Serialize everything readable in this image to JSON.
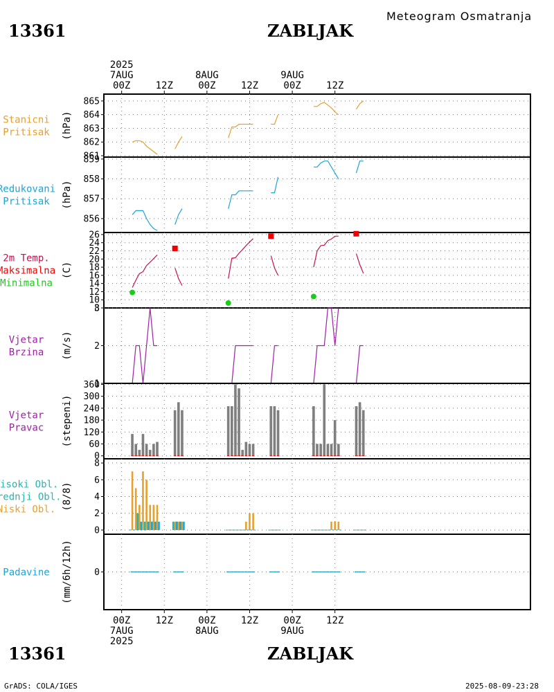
{
  "header": {
    "station_id": "13361",
    "station_name": "ZABLJAK",
    "title": "Meteogram Osmatranja"
  },
  "footer": {
    "station_id": "13361",
    "station_name": "ZABLJAK",
    "credit": "GrADS: COLA/IGES",
    "timestamp": "2025-08-09-23:28"
  },
  "time_axis": {
    "unit": "hours since 2025-08-07 00Z",
    "range": [
      -5,
      115
    ],
    "major": [
      {
        "t": 0,
        "top": [
          "2025",
          "7AUG",
          "00Z"
        ],
        "bottom": [
          "00Z",
          "7AUG",
          "2025"
        ]
      },
      {
        "t": 12,
        "top": [
          "12Z"
        ],
        "bottom": [
          "12Z"
        ]
      },
      {
        "t": 24,
        "top": [
          "8AUG",
          "00Z"
        ],
        "bottom": [
          "00Z",
          "8AUG"
        ]
      },
      {
        "t": 36,
        "top": [
          "12Z"
        ],
        "bottom": [
          "12Z"
        ]
      },
      {
        "t": 48,
        "top": [
          "9AUG",
          "00Z"
        ],
        "bottom": [
          "00Z",
          "9AUG"
        ]
      },
      {
        "t": 60,
        "top": [
          "12Z"
        ],
        "bottom": [
          "12Z"
        ]
      }
    ]
  },
  "colors": {
    "orange": "#e6a02e",
    "cyan": "#1aa6d8",
    "crimson": "#c8104e",
    "red": "#f00000",
    "green": "#1ccc1c",
    "purple": "#a01ea8",
    "gray": "#7f7f7f",
    "teal": "#22b8b0",
    "blue": "#2244dd"
  },
  "chart_data": [
    {
      "id": "stanicni",
      "type": "line",
      "labels": [
        {
          "text": "Stanicni",
          "color": "orange"
        },
        {
          "text": "Pritisak",
          "color": "orange"
        }
      ],
      "unit": "(hPa)",
      "ylim": [
        860.9,
        865.5
      ],
      "yticks": [
        861,
        862,
        863,
        864,
        865
      ],
      "series": [
        {
          "color": "orange",
          "segments": [
            [
              [
                3,
                862.0
              ],
              [
                4,
                862.1
              ],
              [
                5,
                862.1
              ],
              [
                6,
                862.0
              ],
              [
                7,
                861.7
              ],
              [
                8,
                861.5
              ],
              [
                9,
                861.3
              ],
              [
                10,
                861.1
              ]
            ],
            [
              [
                15,
                861.5
              ],
              [
                16,
                862.0
              ],
              [
                17,
                862.4
              ]
            ],
            [
              [
                30,
                862.3
              ],
              [
                31,
                863.1
              ],
              [
                32,
                863.1
              ],
              [
                33,
                863.3
              ],
              [
                34,
                863.3
              ],
              [
                35,
                863.3
              ],
              [
                36,
                863.3
              ],
              [
                37,
                863.3
              ]
            ],
            [
              [
                42,
                863.3
              ],
              [
                43,
                863.3
              ],
              [
                44,
                864.0
              ]
            ],
            [
              [
                54,
                864.6
              ],
              [
                55,
                864.6
              ],
              [
                56,
                864.8
              ],
              [
                57,
                864.9
              ],
              [
                58,
                864.7
              ],
              [
                59,
                864.5
              ],
              [
                60,
                864.2
              ],
              [
                61,
                864.0
              ]
            ],
            [
              [
                66,
                864.4
              ],
              [
                67,
                864.8
              ],
              [
                68,
                865.0
              ]
            ]
          ]
        }
      ]
    },
    {
      "id": "redukovani",
      "type": "line",
      "labels": [
        {
          "text": "Redukovani",
          "color": "cyan"
        },
        {
          "text": "Pritisak",
          "color": "cyan"
        }
      ],
      "unit": "(hPa)",
      "ylim": [
        855.3,
        859.1
      ],
      "yticks": [
        856,
        857,
        858,
        859
      ],
      "series": [
        {
          "color": "cyan",
          "segments": [
            [
              [
                3,
                856.2
              ],
              [
                4,
                856.4
              ],
              [
                5,
                856.4
              ],
              [
                6,
                856.4
              ],
              [
                7,
                856.0
              ],
              [
                8,
                855.7
              ],
              [
                9,
                855.5
              ],
              [
                10,
                855.4
              ]
            ],
            [
              [
                15,
                855.7
              ],
              [
                16,
                856.2
              ],
              [
                17,
                856.5
              ]
            ],
            [
              [
                30,
                856.5
              ],
              [
                31,
                857.2
              ],
              [
                32,
                857.2
              ],
              [
                33,
                857.4
              ],
              [
                34,
                857.4
              ],
              [
                35,
                857.4
              ],
              [
                36,
                857.4
              ],
              [
                37,
                857.4
              ]
            ],
            [
              [
                42,
                857.3
              ],
              [
                43,
                857.3
              ],
              [
                44,
                858.1
              ]
            ],
            [
              [
                54,
                858.6
              ],
              [
                55,
                858.6
              ],
              [
                56,
                858.8
              ],
              [
                57,
                858.9
              ],
              [
                58,
                858.9
              ],
              [
                59,
                858.6
              ],
              [
                60,
                858.3
              ],
              [
                61,
                858.0
              ]
            ],
            [
              [
                66,
                858.3
              ],
              [
                67,
                858.9
              ],
              [
                68,
                858.9
              ]
            ]
          ]
        }
      ]
    },
    {
      "id": "temperatura",
      "type": "line",
      "labels": [
        {
          "text": "2m Temp.",
          "color": "crimson"
        },
        {
          "text": "Maksimalna",
          "color": "red"
        },
        {
          "text": "Minimalna",
          "color": "green"
        }
      ],
      "unit": "(C)",
      "ylim": [
        8,
        26.5
      ],
      "yticks": [
        8,
        10,
        12,
        14,
        16,
        18,
        20,
        22,
        24,
        26
      ],
      "series": [
        {
          "name": "2m Temp.",
          "color": "crimson",
          "segments": [
            [
              [
                3,
                13.0
              ],
              [
                4,
                14.8
              ],
              [
                5,
                16.4
              ],
              [
                6,
                16.9
              ],
              [
                7,
                18.4
              ],
              [
                8,
                19.2
              ],
              [
                9,
                20.1
              ],
              [
                10,
                21.0
              ]
            ],
            [
              [
                15,
                17.8
              ],
              [
                16,
                15.2
              ],
              [
                17,
                13.5
              ]
            ],
            [
              [
                30,
                15.2
              ],
              [
                31,
                20.2
              ],
              [
                32,
                20.3
              ],
              [
                33,
                21.4
              ],
              [
                34,
                22.3
              ],
              [
                35,
                23.3
              ],
              [
                36,
                24.2
              ],
              [
                37,
                25.0
              ]
            ],
            [
              [
                42,
                20.8
              ],
              [
                43,
                17.8
              ],
              [
                44,
                16.0
              ]
            ],
            [
              [
                54,
                18.0
              ],
              [
                55,
                22.0
              ],
              [
                56,
                23.3
              ],
              [
                57,
                23.4
              ],
              [
                58,
                24.5
              ],
              [
                59,
                24.9
              ],
              [
                60,
                25.6
              ],
              [
                61,
                25.6
              ]
            ],
            [
              [
                66,
                21.3
              ],
              [
                67,
                18.6
              ],
              [
                68,
                16.5
              ]
            ]
          ]
        }
      ],
      "max_markers": [
        [
          15,
          22.6
        ],
        [
          42,
          25.6
        ],
        [
          66,
          26.2
        ]
      ],
      "min_markers": [
        [
          3,
          11.8
        ],
        [
          30,
          9.2
        ],
        [
          54,
          10.8
        ]
      ]
    },
    {
      "id": "vjetar_brzina",
      "type": "line",
      "labels": [
        {
          "text": "Vjetar",
          "color": "purple"
        },
        {
          "text": "Brzina",
          "color": "purple"
        }
      ],
      "unit": "(m/s)",
      "ylim": [
        1,
        3
      ],
      "yticks": [
        1,
        2,
        3
      ],
      "series": [
        {
          "color": "purple",
          "segments": [
            [
              [
                3,
                1
              ],
              [
                4,
                2
              ],
              [
                5,
                2
              ],
              [
                6,
                1
              ],
              [
                7,
                2
              ],
              [
                8,
                3
              ],
              [
                9,
                2
              ],
              [
                10,
                2
              ]
            ],
            [
              [
                15,
                1
              ],
              [
                16,
                1
              ],
              [
                17,
                1
              ]
            ],
            [
              [
                30,
                1
              ],
              [
                31,
                1
              ],
              [
                32,
                2
              ],
              [
                33,
                2
              ],
              [
                34,
                2
              ],
              [
                35,
                2
              ],
              [
                36,
                2
              ],
              [
                37,
                2
              ]
            ],
            [
              [
                42,
                1
              ],
              [
                43,
                2
              ],
              [
                44,
                2
              ]
            ],
            [
              [
                54,
                1
              ],
              [
                55,
                2
              ],
              [
                56,
                2
              ],
              [
                57,
                2
              ],
              [
                58,
                3
              ],
              [
                59,
                3
              ],
              [
                60,
                2
              ],
              [
                61,
                3
              ]
            ],
            [
              [
                66,
                1
              ],
              [
                67,
                2
              ],
              [
                68,
                2
              ]
            ]
          ]
        }
      ]
    },
    {
      "id": "vjetar_pravac",
      "type": "bar",
      "labels": [
        {
          "text": "Vjetar",
          "color": "purple"
        },
        {
          "text": "Pravac",
          "color": "purple"
        }
      ],
      "unit": "(stepeni)",
      "ylim": [
        -15,
        365
      ],
      "yticks": [
        0,
        60,
        120,
        180,
        240,
        300,
        360
      ],
      "color": "gray",
      "x": [
        3,
        4,
        5,
        6,
        7,
        8,
        9,
        10,
        15,
        16,
        17,
        30,
        31,
        32,
        33,
        34,
        35,
        36,
        37,
        42,
        43,
        44,
        54,
        55,
        56,
        57,
        58,
        59,
        60,
        61,
        66,
        67,
        68
      ],
      "values": [
        110,
        60,
        30,
        110,
        60,
        30,
        60,
        70,
        230,
        270,
        230,
        250,
        250,
        360,
        340,
        30,
        70,
        60,
        60,
        250,
        250,
        230,
        250,
        60,
        60,
        360,
        60,
        60,
        180,
        60,
        250,
        270,
        230
      ]
    },
    {
      "id": "oblaci",
      "type": "bar",
      "labels": [
        {
          "text": "Visoki Obl.",
          "color": "teal"
        },
        {
          "text": "Srednji Obl.",
          "color": "teal"
        },
        {
          "text": "Niski Obl.",
          "color": "orange"
        }
      ],
      "unit": "(8/8)",
      "ylim": [
        -0.5,
        8.5
      ],
      "yticks": [
        0,
        2,
        4,
        6,
        8
      ],
      "x": [
        3,
        4,
        5,
        6,
        7,
        8,
        9,
        10,
        15,
        16,
        17,
        30,
        31,
        32,
        33,
        34,
        35,
        36,
        37,
        42,
        43,
        44,
        54,
        55,
        56,
        57,
        58,
        59,
        60,
        61,
        66,
        67,
        68
      ],
      "series": [
        {
          "name": "Niski Obl.",
          "color": "orange",
          "values": [
            7,
            5,
            3,
            7,
            6,
            3,
            3,
            3,
            1,
            1,
            1,
            0,
            0,
            0,
            0,
            0,
            1,
            2,
            2,
            0,
            0,
            0,
            0,
            0,
            0,
            0,
            0,
            1,
            1,
            1,
            0,
            0,
            0
          ]
        },
        {
          "name": "Srednji Obl.",
          "color": "teal",
          "values": [
            0,
            0,
            2,
            0,
            1,
            1,
            1,
            1,
            1,
            1,
            1,
            0,
            0,
            0,
            0,
            0,
            0,
            0,
            0,
            0,
            0,
            0,
            0,
            0,
            0,
            0,
            0,
            0,
            0,
            0,
            0,
            0,
            0
          ]
        },
        {
          "name": "Visoki Obl.",
          "color": "cyan",
          "values": [
            0,
            0,
            1,
            0,
            1,
            1,
            1,
            1,
            1,
            1,
            1,
            0,
            0,
            0,
            0,
            0,
            0,
            0,
            0,
            0,
            0,
            0,
            0,
            0,
            0,
            0,
            0,
            0,
            0,
            0,
            0,
            0,
            0
          ]
        }
      ]
    },
    {
      "id": "padavine",
      "type": "bar",
      "labels": [
        {
          "text": "Padavine",
          "color": "cyan"
        }
      ],
      "unit": "(mm/6h/12h)",
      "ylim": [
        -3,
        3
      ],
      "yticks": [
        0
      ],
      "color": "teal",
      "x": [
        3,
        4,
        5,
        6,
        7,
        8,
        9,
        10,
        15,
        16,
        17,
        30,
        31,
        32,
        33,
        34,
        35,
        36,
        37,
        42,
        43,
        44,
        54,
        55,
        56,
        57,
        58,
        59,
        60,
        61,
        66,
        67,
        68
      ],
      "values": [
        0,
        0,
        0,
        0,
        0,
        0,
        0,
        0,
        0,
        0,
        0,
        0,
        0,
        0,
        0,
        0,
        0,
        0,
        0,
        0,
        0,
        0,
        0,
        0,
        0,
        0,
        0,
        0,
        0,
        0,
        0,
        0,
        0
      ]
    }
  ]
}
